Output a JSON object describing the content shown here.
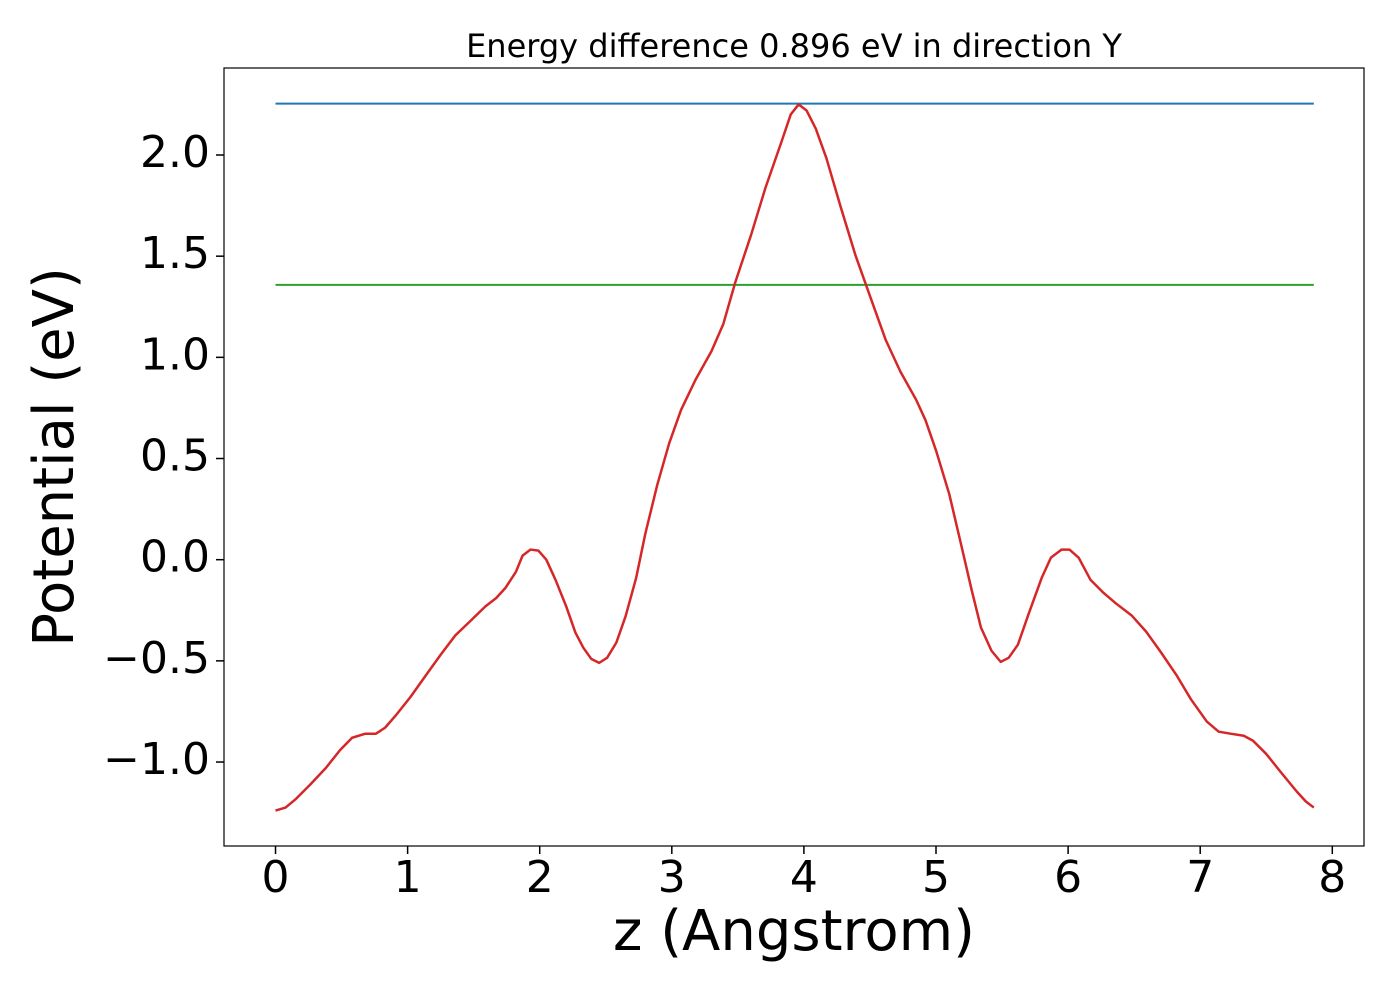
{
  "chart_data": {
    "type": "line",
    "title": "Energy difference 0.896 eV in direction Y",
    "xlabel": "z (Angstrom)",
    "ylabel": "Potential (eV)",
    "x": [
      0,
      0.076,
      0.15,
      0.265,
      0.38,
      0.49,
      0.58,
      0.68,
      0.76,
      0.83,
      0.91,
      1.02,
      1.14,
      1.25,
      1.36,
      1.48,
      1.59,
      1.67,
      1.74,
      1.82,
      1.87,
      1.93,
      1.99,
      2.05,
      2.12,
      2.2,
      2.27,
      2.33,
      2.39,
      2.45,
      2.51,
      2.58,
      2.65,
      2.73,
      2.8,
      2.89,
      2.98,
      3.07,
      3.18,
      3.3,
      3.39,
      3.48,
      3.6,
      3.71,
      3.83,
      3.9,
      3.96,
      4.02,
      4.09,
      4.17,
      4.28,
      4.39,
      4.51,
      4.62,
      4.73,
      4.85,
      4.92,
      5.0,
      5.1,
      5.19,
      5.27,
      5.34,
      5.42,
      5.49,
      5.55,
      5.62,
      5.7,
      5.8,
      5.87,
      5.95,
      6.01,
      6.08,
      6.17,
      6.27,
      6.36,
      6.48,
      6.59,
      6.7,
      6.82,
      6.93,
      7.05,
      7.14,
      7.23,
      7.33,
      7.4,
      7.5,
      7.61,
      7.73,
      7.8,
      7.86
    ],
    "series": [
      {
        "color": "#d62728",
        "values": [
          -1.24,
          -1.225,
          -1.185,
          -1.11,
          -1.03,
          -0.94,
          -0.88,
          -0.86,
          -0.86,
          -0.83,
          -0.77,
          -0.68,
          -0.57,
          -0.47,
          -0.375,
          -0.3,
          -0.23,
          -0.19,
          -0.14,
          -0.06,
          0.02,
          0.05,
          0.045,
          0.0,
          -0.1,
          -0.23,
          -0.36,
          -0.435,
          -0.49,
          -0.51,
          -0.485,
          -0.41,
          -0.28,
          -0.09,
          0.13,
          0.37,
          0.575,
          0.74,
          0.89,
          1.03,
          1.165,
          1.37,
          1.605,
          1.84,
          2.065,
          2.2,
          2.25,
          2.22,
          2.13,
          1.985,
          1.74,
          1.505,
          1.285,
          1.085,
          0.93,
          0.79,
          0.69,
          0.54,
          0.325,
          0.075,
          -0.15,
          -0.335,
          -0.45,
          -0.505,
          -0.485,
          -0.42,
          -0.27,
          -0.09,
          0.01,
          0.05,
          0.05,
          0.01,
          -0.1,
          -0.165,
          -0.215,
          -0.275,
          -0.355,
          -0.455,
          -0.57,
          -0.69,
          -0.8,
          -0.85,
          -0.86,
          -0.87,
          -0.895,
          -0.96,
          -1.05,
          -1.145,
          -1.195,
          -1.225
        ]
      }
    ],
    "hlines": [
      {
        "value": 2.254,
        "color": "#1f77b4"
      },
      {
        "value": 1.358,
        "color": "#2ca02c"
      }
    ],
    "xlim": [
      -0.39,
      8.24
    ],
    "ylim": [
      -1.415,
      2.43
    ],
    "xticks": [
      0,
      1,
      2,
      3,
      4,
      5,
      6,
      7,
      8
    ],
    "yticks": [
      {
        "value": -1.0,
        "label": "−1.0"
      },
      {
        "value": -0.5,
        "label": "−0.5"
      },
      {
        "value": 0.0,
        "label": "0.0"
      },
      {
        "value": 0.5,
        "label": "0.5"
      },
      {
        "value": 1.0,
        "label": "1.0"
      },
      {
        "value": 1.5,
        "label": "1.5"
      },
      {
        "value": 2.0,
        "label": "2.0"
      }
    ]
  }
}
